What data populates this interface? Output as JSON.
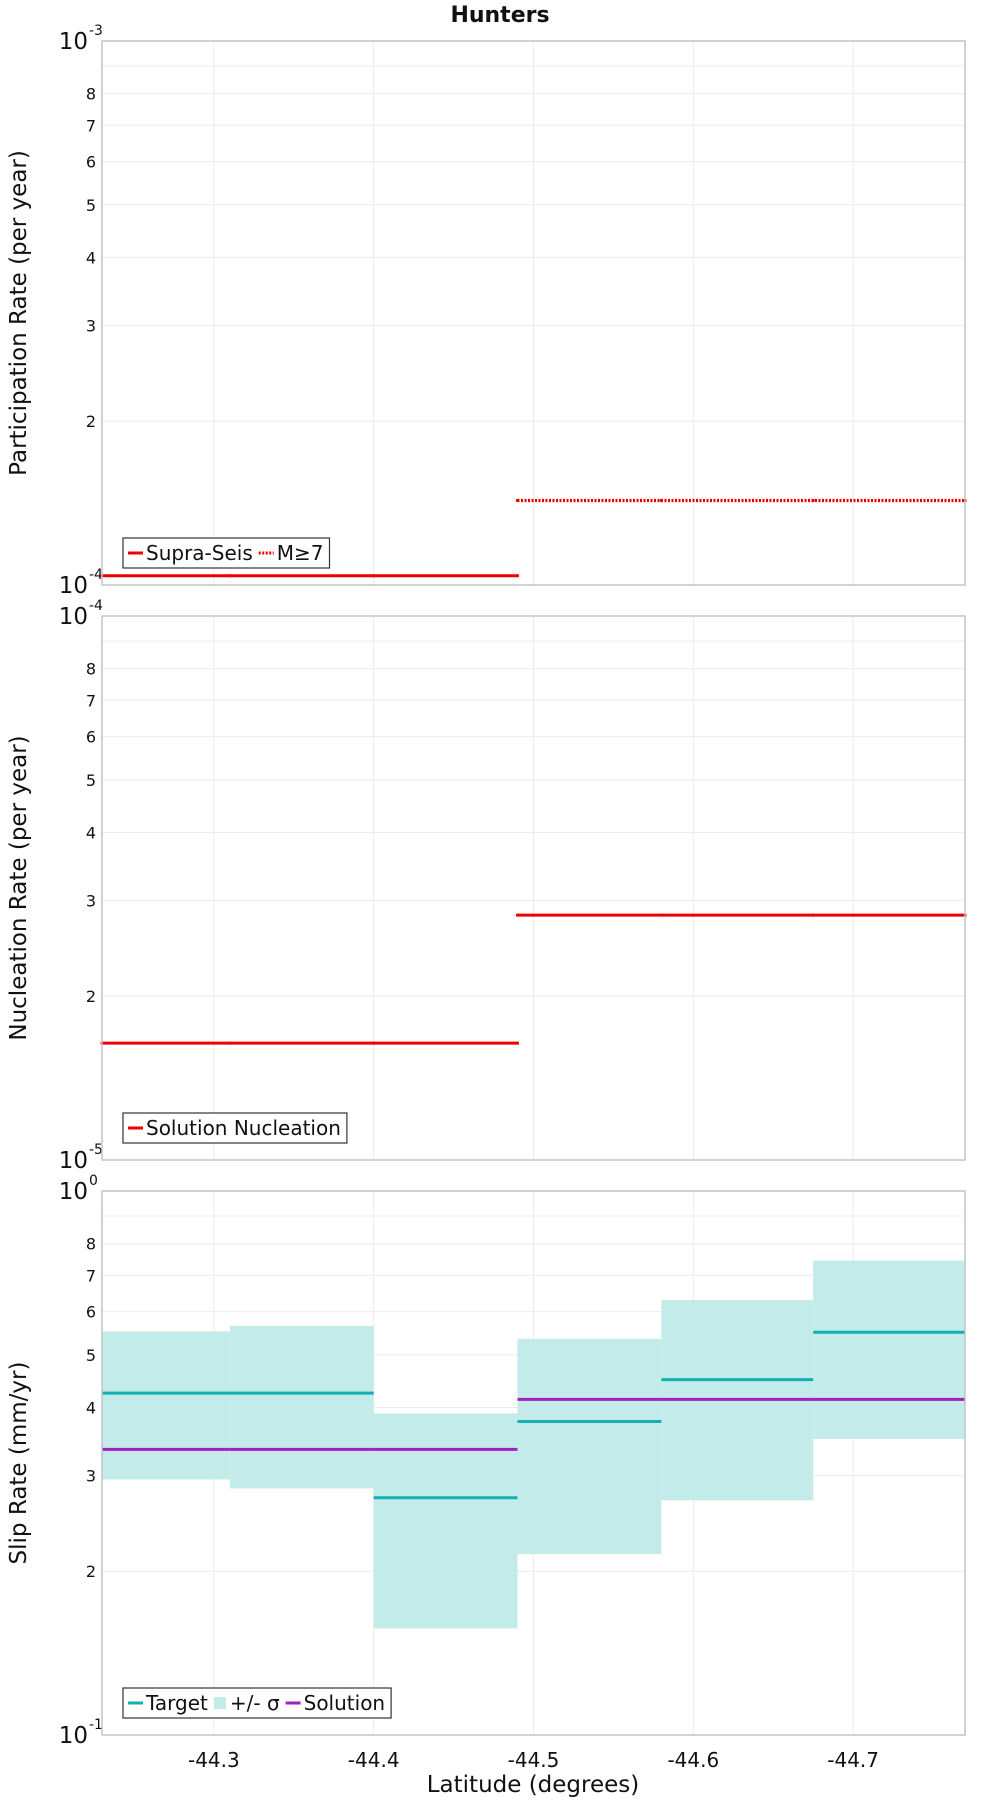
{
  "title": "Hunters",
  "colors": {
    "red": "#ee0000",
    "target": "#12b0b0",
    "band": "#c2ebea",
    "solution": "#a020c0",
    "grid": "#ececec",
    "frame": "#c4c4c4"
  },
  "x_axis": {
    "label": "Latitude (degrees)",
    "range": [
      -44.23,
      -44.77
    ],
    "ticks": [
      -44.3,
      -44.4,
      -44.5,
      -44.6,
      -44.7
    ],
    "tick_labels": [
      "-44.3",
      "-44.4",
      "-44.5",
      "-44.6",
      "-44.7"
    ]
  },
  "chart_data": [
    {
      "type": "line",
      "id": "participation",
      "ylabel": "Participation Rate (per year)",
      "yscale": "log",
      "ylim": [
        0.0001,
        0.001
      ],
      "ylim_labels": [
        {
          "base": "10",
          "exp": "-4"
        },
        {
          "base": "10",
          "exp": "-3"
        }
      ],
      "minor_ticks": [
        2,
        3,
        4,
        5,
        6,
        7,
        8
      ],
      "minor_tick_labels": [
        "2",
        "3",
        "4",
        "5",
        "6",
        "7",
        "8"
      ],
      "minor_scale": 0.0001,
      "series": [
        {
          "name": "Supra-Seis",
          "style": "solid",
          "color": "#ee0000",
          "points": [
            [
              -44.23,
              0.000104
            ],
            [
              -44.31,
              0.000104
            ],
            [
              -44.4,
              0.000104
            ],
            [
              -44.49,
              0.000104
            ]
          ]
        },
        {
          "name": "M≥7",
          "style": "dotted",
          "color": "#ee0000",
          "points": [
            [
              -44.49,
              0.000143
            ],
            [
              -44.58,
              0.000143
            ],
            [
              -44.675,
              0.000143
            ],
            [
              -44.77,
              0.000143
            ]
          ]
        }
      ],
      "legend": [
        {
          "label": "Supra-Seis",
          "kind": "solid",
          "color": "#ee0000"
        },
        {
          "label": "M≥7",
          "kind": "dotted",
          "color": "#ee0000"
        }
      ],
      "legend_position": "bottom-left"
    },
    {
      "type": "line",
      "id": "nucleation",
      "ylabel": "Nucleation Rate (per year)",
      "yscale": "log",
      "ylim": [
        1e-05,
        0.0001
      ],
      "ylim_labels": [
        {
          "base": "10",
          "exp": "-5"
        },
        {
          "base": "10",
          "exp": "-4"
        }
      ],
      "minor_ticks": [
        2,
        3,
        4,
        5,
        6,
        7,
        8
      ],
      "minor_tick_labels": [
        "2",
        "3",
        "4",
        "5",
        "6",
        "7",
        "8"
      ],
      "minor_scale": 1e-05,
      "series": [
        {
          "name": "Solution Nucleation",
          "style": "solid",
          "color": "#ee0000",
          "points": [
            [
              -44.23,
              1.64e-05
            ],
            [
              -44.31,
              1.64e-05
            ],
            [
              -44.4,
              1.64e-05
            ],
            [
              -44.49,
              1.64e-05
            ]
          ]
        },
        {
          "name": "Solution Nucleation (north)",
          "style": "solid",
          "color": "#ee0000",
          "points": [
            [
              -44.49,
              2.82e-05
            ],
            [
              -44.58,
              2.82e-05
            ],
            [
              -44.675,
              2.82e-05
            ],
            [
              -44.77,
              2.82e-05
            ]
          ]
        }
      ],
      "legend": [
        {
          "label": "Solution Nucleation",
          "kind": "solid",
          "color": "#ee0000"
        }
      ],
      "legend_position": "bottom-left"
    },
    {
      "type": "line",
      "id": "slip",
      "ylabel": "Slip Rate (mm/yr)",
      "yscale": "log",
      "ylim": [
        0.1,
        1
      ],
      "ylim_labels": [
        {
          "base": "10",
          "exp": "-1"
        },
        {
          "base": "10",
          "exp": "0"
        }
      ],
      "minor_ticks": [
        2,
        3,
        4,
        5,
        6,
        7,
        8
      ],
      "minor_tick_labels": [
        "2",
        "3",
        "4",
        "5",
        "6",
        "7",
        "8"
      ],
      "minor_scale": 0.1,
      "sections": [
        {
          "x0": -44.23,
          "x1": -44.31,
          "target": 0.425,
          "sigma_low": 0.295,
          "sigma_high": 0.552,
          "solution": 0.335
        },
        {
          "x0": -44.31,
          "x1": -44.4,
          "target": 0.425,
          "sigma_low": 0.284,
          "sigma_high": 0.565,
          "solution": 0.335
        },
        {
          "x0": -44.4,
          "x1": -44.49,
          "target": 0.273,
          "sigma_low": 0.157,
          "sigma_high": 0.39,
          "solution": 0.335
        },
        {
          "x0": -44.49,
          "x1": -44.58,
          "target": 0.377,
          "sigma_low": 0.215,
          "sigma_high": 0.535,
          "solution": 0.414
        },
        {
          "x0": -44.58,
          "x1": -44.675,
          "target": 0.45,
          "sigma_low": 0.27,
          "sigma_high": 0.63,
          "solution": 0.414
        },
        {
          "x0": -44.675,
          "x1": -44.77,
          "target": 0.55,
          "sigma_low": 0.35,
          "sigma_high": 0.745,
          "solution": 0.414
        }
      ],
      "legend": [
        {
          "label": "Target",
          "kind": "solid",
          "color": "#12b0b0"
        },
        {
          "label": "+/- σ",
          "kind": "band",
          "color": "#c2ebea"
        },
        {
          "label": "Solution",
          "kind": "solid",
          "color": "#a020c0"
        }
      ],
      "legend_position": "bottom-left"
    }
  ]
}
